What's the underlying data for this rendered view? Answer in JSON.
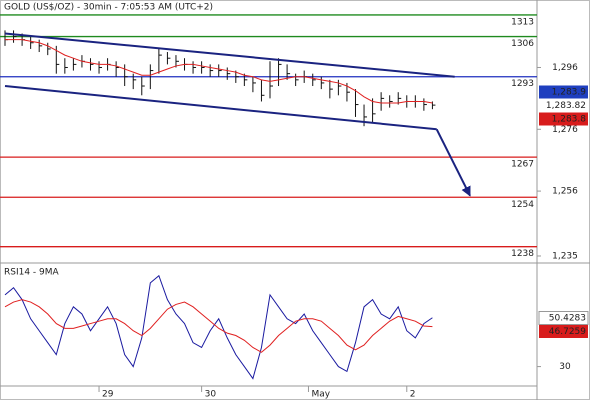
{
  "chart_data": [
    {
      "type": "ohlc",
      "title": "GOLD (US$/OZ) - 30min - 7:05:53 AM (UTC+2)",
      "xlim": [
        0,
        62
      ],
      "ylim": [
        1233.7,
        1314.6
      ],
      "yticks": [
        {
          "value": 1296,
          "label": "1,296"
        },
        {
          "value": 1276,
          "label": "1,276"
        },
        {
          "value": 1256,
          "label": "1,256"
        },
        {
          "value": 1235,
          "label": "1,235"
        }
      ],
      "bar_color": "#111111",
      "ma_color": "#e02020",
      "high": [
        1308,
        1308,
        1307,
        1306,
        1305,
        1304,
        1303,
        1299,
        1299,
        1300,
        1299,
        1298,
        1299,
        1298,
        1297,
        1294,
        1293,
        1297,
        1302,
        1301,
        1300,
        1299,
        1298,
        1298,
        1297,
        1297,
        1296,
        1295,
        1294,
        1293,
        1292,
        1298,
        1299,
        1297,
        1294,
        1295,
        1294,
        1293,
        1292,
        1292,
        1291,
        1289,
        1284,
        1286,
        1288,
        1287,
        1288,
        1287,
        1287,
        1286,
        1285
      ],
      "low": [
        1303,
        1304,
        1303,
        1302,
        1301,
        1300,
        1294,
        1294,
        1295,
        1296,
        1295,
        1294,
        1295,
        1293,
        1290,
        1289,
        1287,
        1289,
        1294,
        1297,
        1296,
        1295,
        1294,
        1294,
        1293,
        1293,
        1292,
        1291,
        1290,
        1288,
        1285,
        1286,
        1290,
        1292,
        1290,
        1291,
        1290,
        1289,
        1286,
        1287,
        1285,
        1280,
        1277,
        1278,
        1282,
        1283,
        1284,
        1283,
        1283,
        1282,
        1282.5
      ],
      "close": [
        1305,
        1306,
        1305,
        1304,
        1303,
        1302,
        1297,
        1296,
        1297,
        1298,
        1297,
        1296,
        1297,
        1296,
        1293,
        1292,
        1290,
        1295,
        1300,
        1299,
        1298,
        1297,
        1296,
        1296,
        1295,
        1295,
        1294,
        1293,
        1292,
        1291,
        1287,
        1290,
        1297,
        1294,
        1292,
        1293,
        1292,
        1291,
        1289,
        1290,
        1288,
        1284,
        1280,
        1281,
        1286,
        1285,
        1286,
        1285,
        1285,
        1284,
        1283.82
      ],
      "ma": [
        1305,
        1305,
        1305,
        1304.5,
        1304,
        1303,
        1301.5,
        1300,
        1299,
        1298,
        1297.5,
        1297,
        1297,
        1296.5,
        1295.5,
        1294.5,
        1293.5,
        1293.5,
        1294.5,
        1295.5,
        1296.5,
        1297,
        1297,
        1296.5,
        1296,
        1295.5,
        1295,
        1294.5,
        1293.5,
        1293,
        1292,
        1291.5,
        1292,
        1292.5,
        1293,
        1293,
        1292.5,
        1292,
        1291.5,
        1291,
        1290,
        1288.5,
        1286.5,
        1285,
        1284.5,
        1284.5,
        1284.5,
        1285,
        1285,
        1285,
        1284.5
      ],
      "levels": [
        {
          "value": 1313,
          "color": "#1f8a1f"
        },
        {
          "value": 1306,
          "color": "#1f8a1f"
        },
        {
          "value": 1293,
          "color": "#1f2fbf"
        },
        {
          "value": 1267,
          "color": "#d81c1c"
        },
        {
          "value": 1254,
          "color": "#d81c1c"
        },
        {
          "value": 1238,
          "color": "#d81c1c"
        }
      ],
      "trendlines": [
        {
          "x": [
            0,
            52.6
          ],
          "y": [
            1307,
            1293
          ]
        },
        {
          "x": [
            0,
            50.5
          ],
          "y": [
            1290,
            1276
          ]
        },
        {
          "x": [
            50.5,
            54.4
          ],
          "y": [
            1276,
            1254.5
          ],
          "arrow": true
        }
      ],
      "trend_color": "#1a2380",
      "quotes": [
        {
          "value": 1283.9,
          "label": "1,283.9",
          "color": "#1f3fbf"
        },
        {
          "value": 1283.82,
          "label": "1,283.82",
          "color": "#ffffff"
        },
        {
          "value": 1283.8,
          "label": "1,283.8",
          "color": "#d81c1c"
        }
      ]
    },
    {
      "type": "line",
      "title": "RSI14 - 9MA",
      "xlim": [
        0,
        62
      ],
      "ylim": [
        22.3,
        72.5
      ],
      "yticks": [
        30
      ],
      "xticks": [
        {
          "value": 11,
          "label": "29"
        },
        {
          "value": 23,
          "label": "30"
        },
        {
          "value": 35.5,
          "label": "May"
        },
        {
          "value": 47,
          "label": "2"
        }
      ],
      "series": [
        {
          "color": "#1a1aa0",
          "label_bg": "#ffffff",
          "values": [
            60,
            63,
            58,
            50,
            45,
            40,
            35,
            48,
            55,
            52,
            45,
            50,
            55,
            48,
            35,
            30,
            42,
            65,
            68,
            58,
            52,
            48,
            40,
            38,
            45,
            50,
            42,
            35,
            30,
            25,
            38,
            60,
            55,
            50,
            48,
            52,
            45,
            40,
            35,
            30,
            28,
            40,
            55,
            58,
            52,
            50,
            55,
            45,
            42,
            48,
            50.4283
          ]
        },
        {
          "color": "#e02020",
          "label_bg": "#d81c1c",
          "values": [
            55,
            57,
            58,
            57,
            55,
            52,
            48,
            46,
            46,
            47,
            48,
            49,
            50,
            50,
            48,
            45,
            43,
            46,
            50,
            54,
            56,
            57,
            55,
            52,
            49,
            46,
            44,
            43,
            41,
            38,
            36,
            39,
            43,
            46,
            49,
            50,
            50,
            49,
            46,
            43,
            39,
            37,
            39,
            43,
            46,
            49,
            51,
            50,
            49,
            47,
            46.7259
          ]
        }
      ]
    }
  ]
}
